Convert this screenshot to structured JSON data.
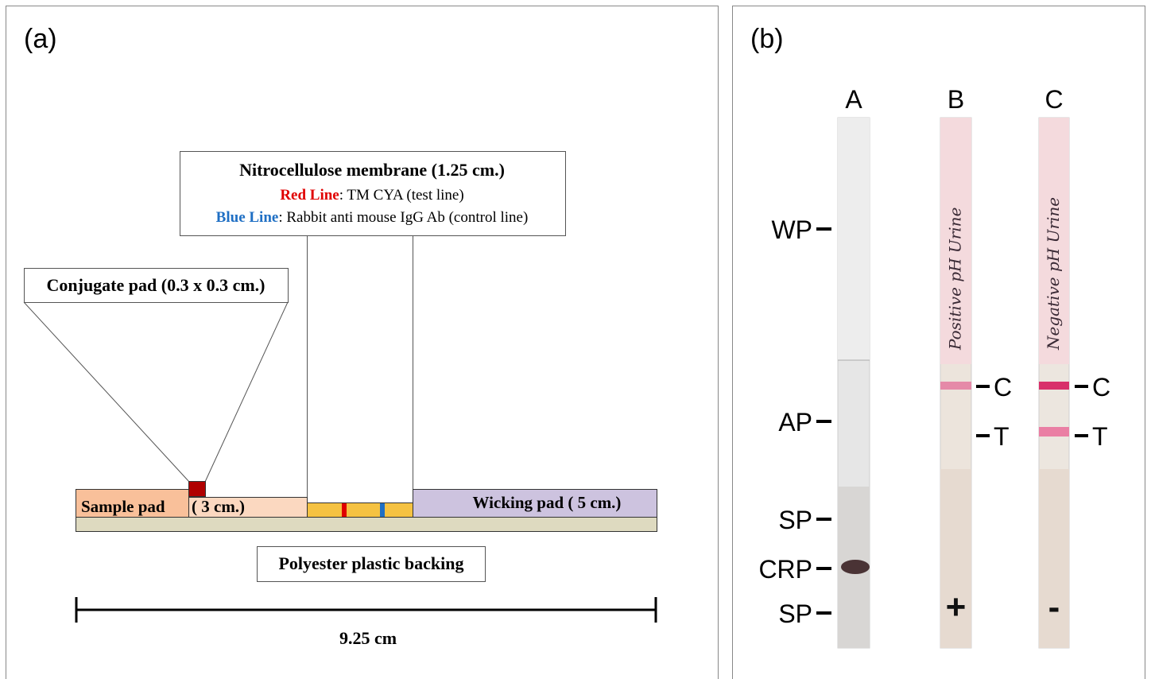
{
  "panel_a": {
    "label": "(a)",
    "membrane": {
      "title": "Nitrocellulose membrane (1.25 cm.)",
      "red_line": {
        "label": "Red Line",
        "text": ": TM CYA (test line)"
      },
      "blue_line": {
        "label": "Blue Line",
        "text": ": Rabbit anti mouse IgG Ab (control line)"
      }
    },
    "conjugate_pad": "Conjugate pad (0.3 x 0.3 cm.)",
    "sample_pad": "Sample pad",
    "sample_pad_size": "( 3 cm.)",
    "wicking_pad": "Wicking pad ( 5 cm.)",
    "backing": "Polyester plastic backing",
    "length": "9.25 cm"
  },
  "panel_b": {
    "label": "(b)",
    "strips": [
      {
        "name": "A"
      },
      {
        "name": "B",
        "note": "Positive pH Urine",
        "sign": "+"
      },
      {
        "name": "C",
        "note": "Negative pH Urine",
        "sign": "-"
      }
    ],
    "zones": [
      "WP",
      "AP",
      "SP",
      "CRP",
      "SP"
    ],
    "lines": [
      "C",
      "T"
    ]
  }
}
